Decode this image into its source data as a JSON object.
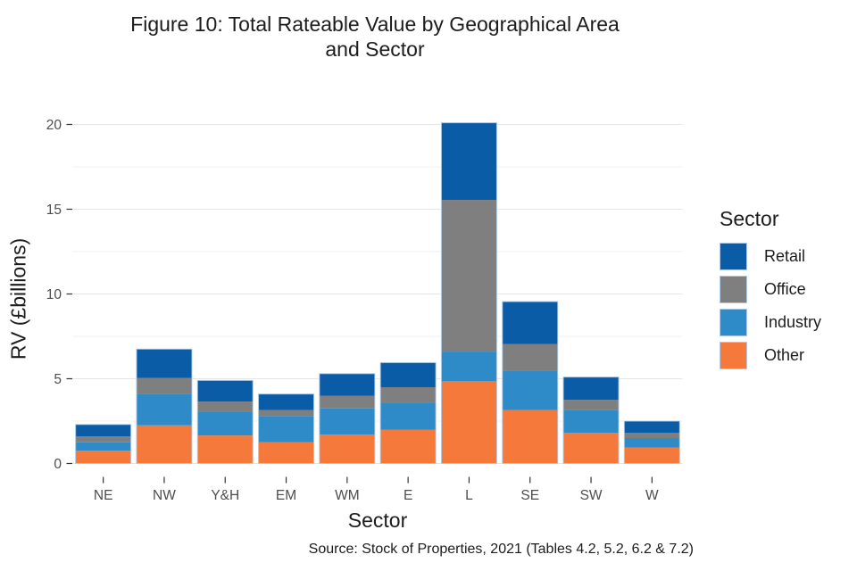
{
  "figure": {
    "title_line1": "Figure 10: Total Rateable Value by Geographical Area",
    "title_line2": "and Sector",
    "caption": "Source: Stock of Properties, 2021 (Tables 4.2, 5.2, 6.2 & 7.2)"
  },
  "chart_data": {
    "type": "bar",
    "stacked": true,
    "title": "Figure 10: Total Rateable Value by Geographical Area and Sector",
    "xlabel": "Sector",
    "ylabel": "RV (£billions)",
    "categories": [
      "NE",
      "NW",
      "Y&H",
      "EM",
      "WM",
      "E",
      "L",
      "SE",
      "SW",
      "W"
    ],
    "series": [
      {
        "name": "Other",
        "color": "#F4793B",
        "values": [
          0.75,
          2.25,
          1.65,
          1.25,
          1.7,
          2.0,
          4.85,
          3.15,
          1.8,
          0.95
        ]
      },
      {
        "name": "Industry",
        "color": "#2E8BC7",
        "values": [
          0.5,
          1.85,
          1.4,
          1.55,
          1.55,
          1.6,
          1.75,
          2.3,
          1.35,
          0.55
        ]
      },
      {
        "name": "Office",
        "color": "#7F7F7F",
        "values": [
          0.35,
          0.95,
          0.6,
          0.35,
          0.75,
          0.9,
          8.95,
          1.6,
          0.6,
          0.3
        ]
      },
      {
        "name": "Retail",
        "color": "#0B5CA6",
        "values": [
          0.7,
          1.7,
          1.25,
          0.95,
          1.3,
          1.45,
          4.55,
          2.5,
          1.35,
          0.7
        ]
      }
    ],
    "stack_order_bottom_to_top": [
      "Other",
      "Industry",
      "Office",
      "Retail"
    ],
    "totals": [
      2.3,
      6.75,
      4.9,
      4.1,
      5.3,
      5.95,
      20.1,
      9.55,
      5.1,
      2.5
    ],
    "ylim": [
      0,
      20
    ],
    "yticks": [
      0,
      5,
      10,
      15,
      20
    ],
    "minor_gridlines": [
      2.5,
      7.5,
      12.5,
      17.5
    ],
    "grid": "horizontal",
    "legend": {
      "title": "Sector",
      "position": "right",
      "entries": [
        "Retail",
        "Office",
        "Industry",
        "Other"
      ]
    }
  },
  "style": {
    "bar_outline": "#aecbe8",
    "gridline_major": "#e6e6e6",
    "gridline_minor": "#f0f0f0",
    "tick_mark": "#333333",
    "tick_label": "#4d4d4d"
  }
}
